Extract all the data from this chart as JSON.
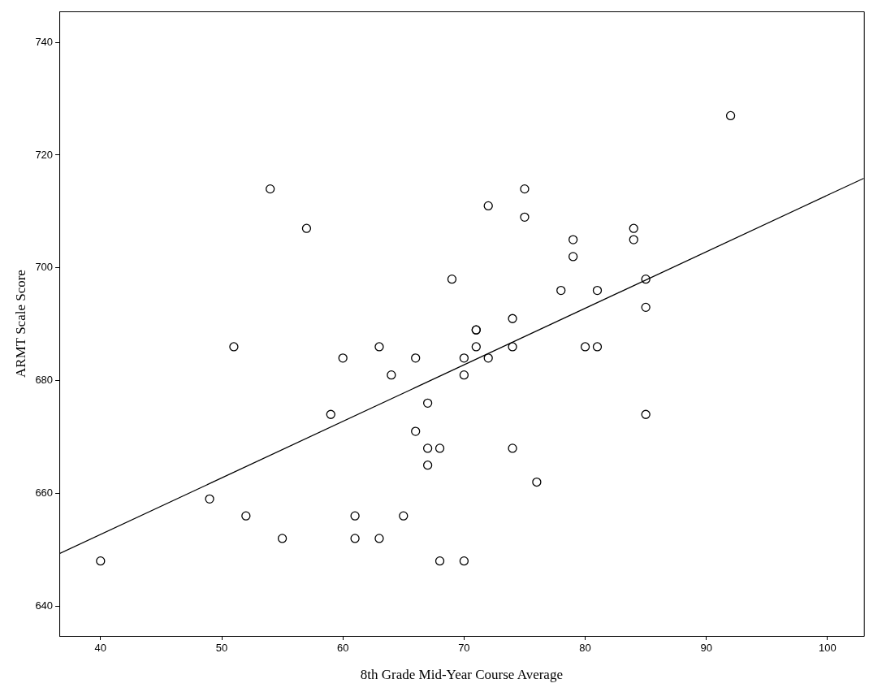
{
  "chart_data": {
    "type": "scatter",
    "xlabel": "8th Grade Mid-Year Course Average",
    "ylabel": "ARMT Scale Score",
    "xlim": [
      36.6,
      103
    ],
    "ylim": [
      634.7,
      745.5
    ],
    "xticks": [
      40,
      50,
      60,
      70,
      80,
      90,
      100
    ],
    "yticks": [
      640,
      660,
      680,
      700,
      720,
      740
    ],
    "grid": false,
    "legend": false,
    "series": [
      {
        "marker": "circle",
        "color": "#000000",
        "x": [
          40,
          49,
          51,
          52,
          54,
          55,
          57,
          59,
          60,
          61,
          61,
          63,
          63,
          64,
          65,
          66,
          66,
          67,
          67,
          67,
          68,
          68,
          69,
          70,
          70,
          70,
          71,
          71,
          71,
          72,
          72,
          74,
          74,
          74,
          75,
          75,
          76,
          78,
          79,
          79,
          80,
          81,
          81,
          84,
          84,
          85,
          85,
          85,
          92
        ],
        "values": [
          648,
          659,
          686,
          656,
          714,
          652,
          707,
          674,
          684,
          656,
          652,
          686,
          652,
          681,
          656,
          684,
          671,
          676,
          668,
          665,
          668,
          648,
          698,
          684,
          681,
          648,
          689,
          689,
          686,
          711,
          684,
          691,
          686,
          668,
          714,
          709,
          662,
          696,
          705,
          702,
          686,
          696,
          686,
          707,
          705,
          698,
          693,
          674,
          727
        ]
      },
      {
        "type": "line",
        "marker": "none",
        "color": "#000000",
        "x": [
          36.6,
          103
        ],
        "values": [
          649.3,
          715.9
        ]
      }
    ]
  }
}
